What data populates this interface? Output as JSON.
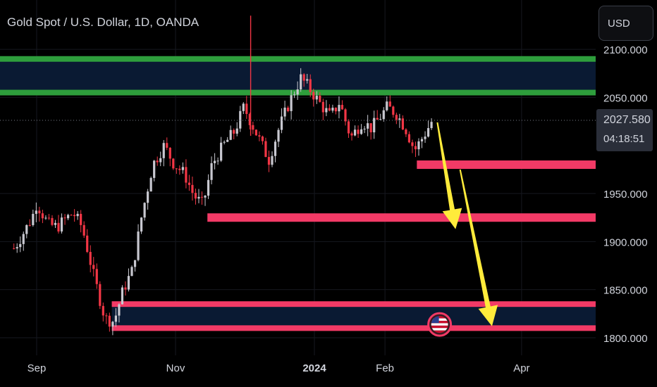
{
  "header": {
    "title": "Gold Spot / U.S. Dollar, 1D, OANDA",
    "currency_button": "USD"
  },
  "price_badge": {
    "price": "2027.580",
    "countdown": "04:18:51"
  },
  "colors": {
    "background": "#000000",
    "green_line": "#2e9e3c",
    "red_zone": "#f23a66",
    "zone_fill": "#0a1a33",
    "arrow": "#ffeb3b",
    "up_candle": "#c8c8d0",
    "down_candle": "#f23645"
  },
  "chart_data": {
    "type": "candlestick",
    "symbol": "Gold Spot / U.S. Dollar",
    "timeframe": "1D",
    "y_axis": {
      "range": [
        1790,
        2135
      ],
      "ticks": [
        "2100.000",
        "2050.000",
        "1950.000",
        "1900.000",
        "1850.000",
        "1800.000"
      ]
    },
    "x_axis": {
      "ticks": [
        {
          "label": "Sep",
          "date": "2023-09-01"
        },
        {
          "label": "Nov",
          "date": "2023-11-01"
        },
        {
          "label": "2024",
          "date": "2024-01-01",
          "bold": true
        },
        {
          "label": "Feb",
          "date": "2024-02-01"
        },
        {
          "label": "Apr",
          "date": "2024-04-01"
        }
      ]
    },
    "last_price": 2027.58,
    "price_path": [
      [
        "2023-08-22",
        1893
      ],
      [
        "2023-08-24",
        1900
      ],
      [
        "2023-08-30",
        1925
      ],
      [
        "2023-09-01",
        1940
      ],
      [
        "2023-09-06",
        1918
      ],
      [
        "2023-09-10",
        1915
      ],
      [
        "2023-09-13",
        1922
      ],
      [
        "2023-09-17",
        1930
      ],
      [
        "2023-09-21",
        1915
      ],
      [
        "2023-09-26",
        1865
      ],
      [
        "2023-10-01",
        1820
      ],
      [
        "2023-10-05",
        1817
      ],
      [
        "2023-10-09",
        1850
      ],
      [
        "2023-10-13",
        1870
      ],
      [
        "2023-10-17",
        1925
      ],
      [
        "2023-10-22",
        1980
      ],
      [
        "2023-10-27",
        2000
      ],
      [
        "2023-10-31",
        1982
      ],
      [
        "2023-11-05",
        1970
      ],
      [
        "2023-11-09",
        1948
      ],
      [
        "2023-11-13",
        1938
      ],
      [
        "2023-11-17",
        1980
      ],
      [
        "2023-11-22",
        2000
      ],
      [
        "2023-11-27",
        2015
      ],
      [
        "2023-12-01",
        2040
      ],
      [
        "2023-12-04",
        2025
      ],
      [
        "2023-12-08",
        2005
      ],
      [
        "2023-12-12",
        1985
      ],
      [
        "2023-12-16",
        2015
      ],
      [
        "2023-12-21",
        2045
      ],
      [
        "2023-12-26",
        2070
      ],
      [
        "2023-12-29",
        2062
      ],
      [
        "2024-01-03",
        2045
      ],
      [
        "2024-01-08",
        2030
      ],
      [
        "2024-01-12",
        2045
      ],
      [
        "2024-01-17",
        2008
      ],
      [
        "2024-01-22",
        2025
      ],
      [
        "2024-01-26",
        2018
      ],
      [
        "2024-01-30",
        2030
      ],
      [
        "2024-02-02",
        2040
      ],
      [
        "2024-02-06",
        2033
      ],
      [
        "2024-02-10",
        2018
      ],
      [
        "2024-02-14",
        1995
      ],
      [
        "2024-02-18",
        2010
      ],
      [
        "2024-02-22",
        2027
      ]
    ],
    "spikes": [
      {
        "date": "2023-12-04",
        "high": 2135,
        "low": 2010
      }
    ],
    "zones": [
      {
        "from": 2055,
        "to": 2090,
        "style": "green-border-band",
        "start_date": "2023-08-15",
        "extend": "right"
      },
      {
        "from": 1810,
        "to": 1835,
        "style": "red-border-band",
        "start_date": "2023-10-04",
        "extend": "right"
      }
    ],
    "levels": [
      {
        "price": 1980,
        "style": "red-bar",
        "start_date": "2024-02-15",
        "extend": "right"
      },
      {
        "price": 1925,
        "style": "red-bar",
        "start_date": "2023-11-15",
        "extend": "right"
      }
    ],
    "arrows": [
      {
        "from": {
          "date": "2024-02-24",
          "price": 2024
        },
        "to": {
          "date": "2024-03-03",
          "price": 1913
        }
      },
      {
        "from": {
          "date": "2024-03-05",
          "price": 1975
        },
        "to": {
          "date": "2024-03-19",
          "price": 1812
        }
      }
    ],
    "event_marker": {
      "date": "2024-02-25",
      "price": 1808,
      "icon": "us-flag-icon"
    }
  }
}
